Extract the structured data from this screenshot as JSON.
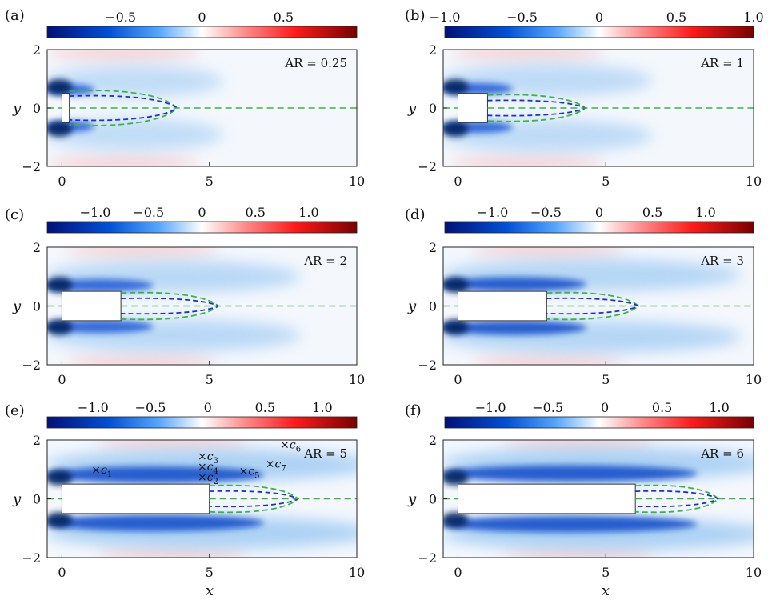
{
  "figure": {
    "xlabel": "x",
    "ylabel": "y",
    "colormap": {
      "negative": "#00117a",
      "mid": "#ffffff",
      "positive": "#7a0000"
    },
    "contour_colors": {
      "outer": "#3cb43c",
      "inner": "#1f2fd0"
    }
  },
  "chart_data": [
    {
      "type": "heatmap",
      "panel_label": "(a)",
      "aspect_label": "AR = 0.25",
      "aspect_ratio": 0.25,
      "xlim": [
        -0.5,
        10
      ],
      "ylim": [
        -2,
        2
      ],
      "x_ticks": [
        "0",
        "5",
        "10"
      ],
      "y_ticks": [
        "2",
        "0",
        "−2"
      ],
      "colorbar": {
        "range": [
          -0.95,
          0.95
        ],
        "ticks": [
          -0.5,
          0,
          0.5
        ],
        "tick_labels": [
          "−0.5",
          "0",
          "0.5"
        ]
      },
      "body": {
        "x": [
          0,
          0.25
        ],
        "y": [
          -0.5,
          0.5
        ]
      },
      "recirculation_end_x": 3.9,
      "annotations": []
    },
    {
      "type": "heatmap",
      "panel_label": "(b)",
      "aspect_label": "AR = 1",
      "aspect_ratio": 1,
      "xlim": [
        -0.5,
        10
      ],
      "ylim": [
        -2,
        2
      ],
      "x_ticks": [
        "0",
        "5",
        "10"
      ],
      "y_ticks": [
        "2",
        "0",
        "−2"
      ],
      "colorbar": {
        "range": [
          -1.0,
          1.0
        ],
        "ticks": [
          -1.0,
          -0.5,
          0,
          0.5,
          1.0
        ],
        "tick_labels": [
          "−1.0",
          "−0.5",
          "0",
          "0.5",
          "1.0"
        ]
      },
      "body": {
        "x": [
          0,
          1
        ],
        "y": [
          -0.5,
          0.5
        ]
      },
      "recirculation_end_x": 4.3,
      "annotations": []
    },
    {
      "type": "heatmap",
      "panel_label": "(c)",
      "aspect_label": "AR = 2",
      "aspect_ratio": 2,
      "xlim": [
        -0.5,
        10
      ],
      "ylim": [
        -2,
        2
      ],
      "x_ticks": [
        "0",
        "5",
        "10"
      ],
      "y_ticks": [
        "2",
        "0",
        "−2"
      ],
      "colorbar": {
        "range": [
          -1.45,
          1.45
        ],
        "ticks": [
          -1.0,
          -0.5,
          0,
          0.5,
          1.0
        ],
        "tick_labels": [
          "−1.0",
          "−0.5",
          "0",
          "0.5",
          "1.0"
        ]
      },
      "body": {
        "x": [
          0,
          2
        ],
        "y": [
          -0.5,
          0.5
        ]
      },
      "recirculation_end_x": 5.3,
      "annotations": []
    },
    {
      "type": "heatmap",
      "panel_label": "(d)",
      "aspect_label": "AR = 3",
      "aspect_ratio": 3,
      "xlim": [
        -0.5,
        10
      ],
      "ylim": [
        -2,
        2
      ],
      "x_ticks": [
        "0",
        "5",
        "10"
      ],
      "y_ticks": [
        "2",
        "0",
        "−2"
      ],
      "colorbar": {
        "range": [
          -1.45,
          1.45
        ],
        "ticks": [
          -1.0,
          -0.5,
          0,
          0.5,
          1.0
        ],
        "tick_labels": [
          "−1.0",
          "−0.5",
          "0",
          "0.5",
          "1.0"
        ]
      },
      "body": {
        "x": [
          0,
          3
        ],
        "y": [
          -0.5,
          0.5
        ]
      },
      "recirculation_end_x": 6.1,
      "annotations": []
    },
    {
      "type": "heatmap",
      "panel_label": "(e)",
      "aspect_label": "AR = 5",
      "aspect_ratio": 5,
      "xlim": [
        -0.5,
        10
      ],
      "ylim": [
        -2,
        2
      ],
      "x_ticks": [
        "0",
        "5",
        "10"
      ],
      "y_ticks": [
        "2",
        "0",
        "−2"
      ],
      "colorbar": {
        "range": [
          -1.4,
          1.3
        ],
        "ticks": [
          -1.0,
          -0.5,
          0,
          0.5,
          1.0
        ],
        "tick_labels": [
          "−1.0",
          "−0.5",
          "0",
          "0.5",
          "1.0"
        ]
      },
      "body": {
        "x": [
          0,
          5
        ],
        "y": [
          -0.5,
          0.5
        ]
      },
      "recirculation_end_x": 8.0,
      "annotations": [
        {
          "label": "c",
          "sub": "1",
          "x": 1.0,
          "y": 1.0
        },
        {
          "label": "c",
          "sub": "2",
          "x": 4.6,
          "y": 0.75
        },
        {
          "label": "c",
          "sub": "3",
          "x": 4.6,
          "y": 1.45
        },
        {
          "label": "c",
          "sub": "4",
          "x": 4.6,
          "y": 1.1
        },
        {
          "label": "c",
          "sub": "5",
          "x": 6.0,
          "y": 0.95
        },
        {
          "label": "c",
          "sub": "6",
          "x": 7.4,
          "y": 1.85
        },
        {
          "label": "c",
          "sub": "7",
          "x": 6.9,
          "y": 1.2
        }
      ]
    },
    {
      "type": "heatmap",
      "panel_label": "(f)",
      "aspect_label": "AR = 6",
      "aspect_ratio": 6,
      "xlim": [
        -0.5,
        10
      ],
      "ylim": [
        -2,
        2
      ],
      "x_ticks": [
        "0",
        "5",
        "10"
      ],
      "y_ticks": [
        "2",
        "0",
        "−2"
      ],
      "colorbar": {
        "range": [
          -1.4,
          1.3
        ],
        "ticks": [
          -1.0,
          -0.5,
          0,
          0.5,
          1.0
        ],
        "tick_labels": [
          "−1.0",
          "−0.5",
          "0",
          "0.5",
          "1.0"
        ]
      },
      "body": {
        "x": [
          0,
          6
        ],
        "y": [
          -0.5,
          0.5
        ]
      },
      "recirculation_end_x": 8.8,
      "annotations": []
    }
  ]
}
